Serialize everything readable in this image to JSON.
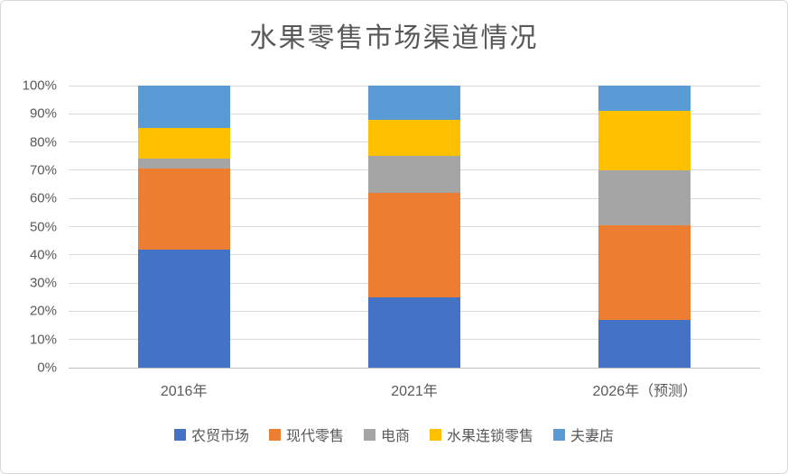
{
  "chart_data": {
    "type": "bar",
    "variant": "stacked-100-percent",
    "title": "水果零售市场渠道情况",
    "categories": [
      "2016年",
      "2021年",
      "2026年（预测）"
    ],
    "series": [
      {
        "name": "农贸市场",
        "color": "#4472C4",
        "values": [
          42,
          25,
          17
        ]
      },
      {
        "name": "现代零售",
        "color": "#ED7D31",
        "values": [
          28.5,
          37,
          33.5
        ]
      },
      {
        "name": "电商",
        "color": "#A5A5A5",
        "values": [
          3.5,
          13,
          19.5
        ]
      },
      {
        "name": "水果连锁零售",
        "color": "#FFC000",
        "values": [
          11,
          13,
          21
        ]
      },
      {
        "name": "夫妻店",
        "color": "#5B9BD5",
        "values": [
          15,
          12,
          9
        ]
      }
    ],
    "ylim": [
      0,
      100
    ],
    "y_ticks": [
      "0%",
      "10%",
      "20%",
      "30%",
      "40%",
      "50%",
      "60%",
      "70%",
      "80%",
      "90%",
      "100%"
    ],
    "grid": true,
    "legend_position": "bottom"
  },
  "style": {
    "text_color": "#595959",
    "gridline_color": "#D9D9D9",
    "axis_line_color": "#BFBFBF",
    "frame_border_color": "#D9D9D9",
    "background": "#FFFFFF"
  }
}
